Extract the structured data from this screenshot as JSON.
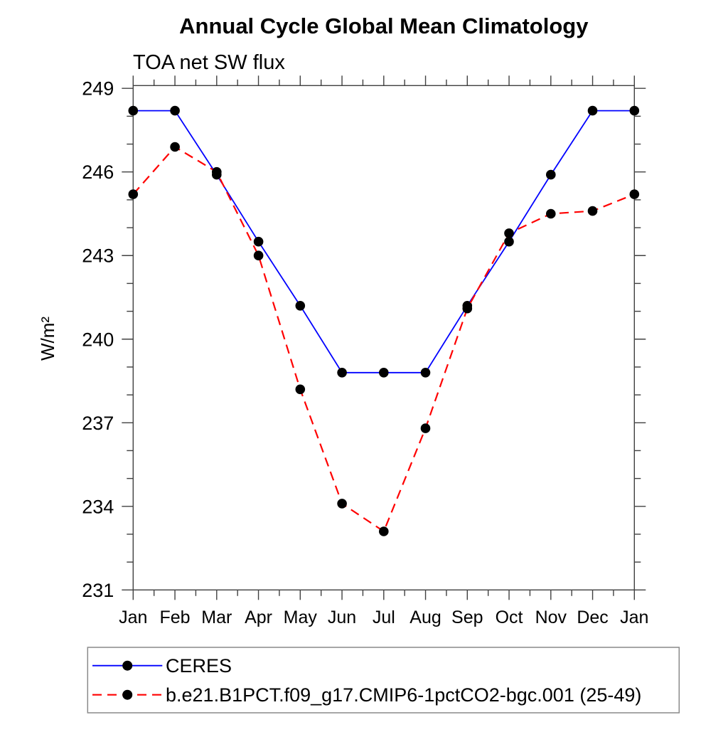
{
  "page": {
    "background": "#ffffff"
  },
  "chart_data": {
    "type": "line",
    "title": "Annual Cycle Global Mean Climatology",
    "subtitle": "TOA net SW flux",
    "xlabel": "",
    "ylabel": "W/m²",
    "categories": [
      "Jan",
      "Feb",
      "Mar",
      "Apr",
      "May",
      "Jun",
      "Jul",
      "Aug",
      "Sep",
      "Oct",
      "Nov",
      "Dec",
      "Jan"
    ],
    "series": [
      {
        "name": "CERES",
        "color": "#0000ff",
        "line_style": "solid",
        "marker": "filled-circle",
        "marker_color": "#000000",
        "values": [
          248.2,
          248.2,
          245.9,
          243.5,
          241.2,
          238.8,
          238.8,
          238.8,
          241.2,
          243.5,
          245.9,
          248.2,
          248.2
        ]
      },
      {
        "name": "b.e21.B1PCT.f09_g17.CMIP6-1pctCO2-bgc.001 (25-49)",
        "color": "#ff0000",
        "line_style": "dashed",
        "marker": "filled-circle",
        "marker_color": "#000000",
        "values": [
          245.2,
          246.9,
          246.0,
          243.0,
          238.2,
          234.1,
          233.1,
          236.8,
          241.1,
          243.8,
          244.5,
          244.6,
          245.2
        ]
      }
    ],
    "ylim": [
      231,
      249.1
    ],
    "yticks_major": [
      231,
      234,
      237,
      240,
      243,
      246,
      249
    ],
    "ytick_minor_step": 1,
    "xtick_minor": "half-month",
    "grid": false,
    "axis_color": "#404040",
    "legend_position": "bottom-left-box"
  }
}
